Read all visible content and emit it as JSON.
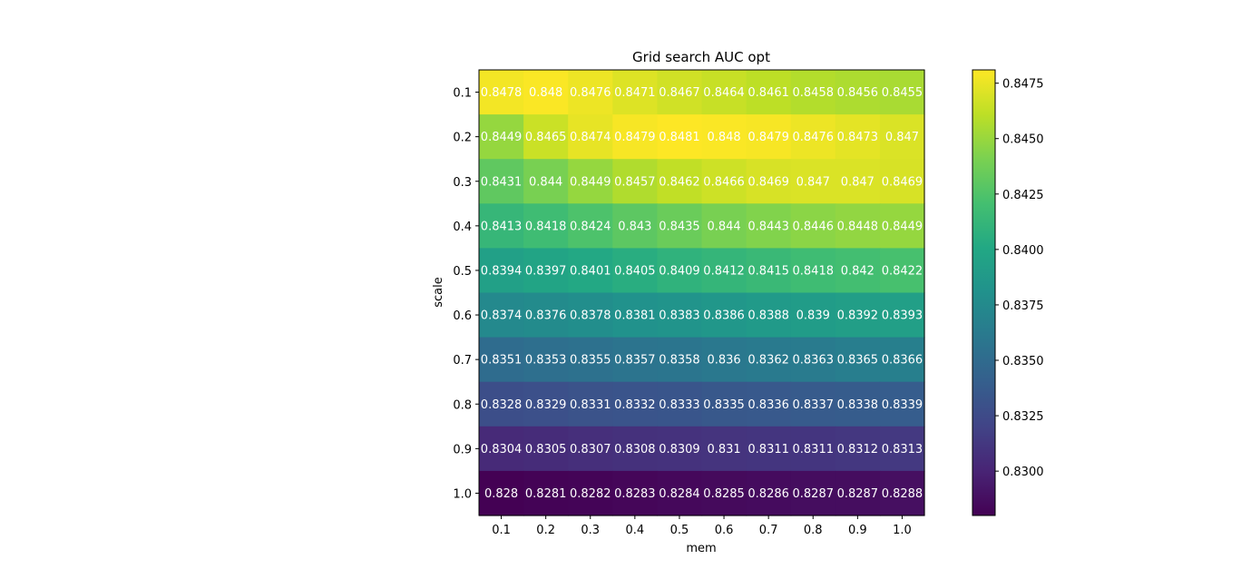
{
  "chart_data": {
    "type": "heatmap",
    "title": "Grid search AUC opt",
    "xlabel": "mem",
    "ylabel": "scale",
    "x": [
      "0.1",
      "0.2",
      "0.3",
      "0.4",
      "0.5",
      "0.6",
      "0.7",
      "0.8",
      "0.9",
      "1.0"
    ],
    "y": [
      "0.1",
      "0.2",
      "0.3",
      "0.4",
      "0.5",
      "0.6",
      "0.7",
      "0.8",
      "0.9",
      "1.0"
    ],
    "values": [
      [
        0.8478,
        0.848,
        0.8476,
        0.8471,
        0.8467,
        0.8464,
        0.8461,
        0.8458,
        0.8456,
        0.8455
      ],
      [
        0.8449,
        0.8465,
        0.8474,
        0.8479,
        0.8481,
        0.848,
        0.8479,
        0.8476,
        0.8473,
        0.847
      ],
      [
        0.8431,
        0.844,
        0.8449,
        0.8457,
        0.8462,
        0.8466,
        0.8469,
        0.847,
        0.847,
        0.8469
      ],
      [
        0.8413,
        0.8418,
        0.8424,
        0.843,
        0.8435,
        0.844,
        0.8443,
        0.8446,
        0.8448,
        0.8449
      ],
      [
        0.8394,
        0.8397,
        0.8401,
        0.8405,
        0.8409,
        0.8412,
        0.8415,
        0.8418,
        0.842,
        0.8422
      ],
      [
        0.8374,
        0.8376,
        0.8378,
        0.8381,
        0.8383,
        0.8386,
        0.8388,
        0.839,
        0.8392,
        0.8393
      ],
      [
        0.8351,
        0.8353,
        0.8355,
        0.8357,
        0.8358,
        0.836,
        0.8362,
        0.8363,
        0.8365,
        0.8366
      ],
      [
        0.8328,
        0.8329,
        0.8331,
        0.8332,
        0.8333,
        0.8335,
        0.8336,
        0.8337,
        0.8338,
        0.8339
      ],
      [
        0.8304,
        0.8305,
        0.8307,
        0.8308,
        0.8309,
        0.831,
        0.8311,
        0.8311,
        0.8312,
        0.8313
      ],
      [
        0.828,
        0.8281,
        0.8282,
        0.8283,
        0.8284,
        0.8285,
        0.8286,
        0.8287,
        0.8287,
        0.8288
      ]
    ],
    "vmin": 0.828,
    "vmax": 0.8481,
    "colormap": "viridis",
    "colorbar_ticks": [
      "0.8300",
      "0.8325",
      "0.8350",
      "0.8375",
      "0.8400",
      "0.8425",
      "0.8450",
      "0.8475"
    ],
    "grid": false
  }
}
